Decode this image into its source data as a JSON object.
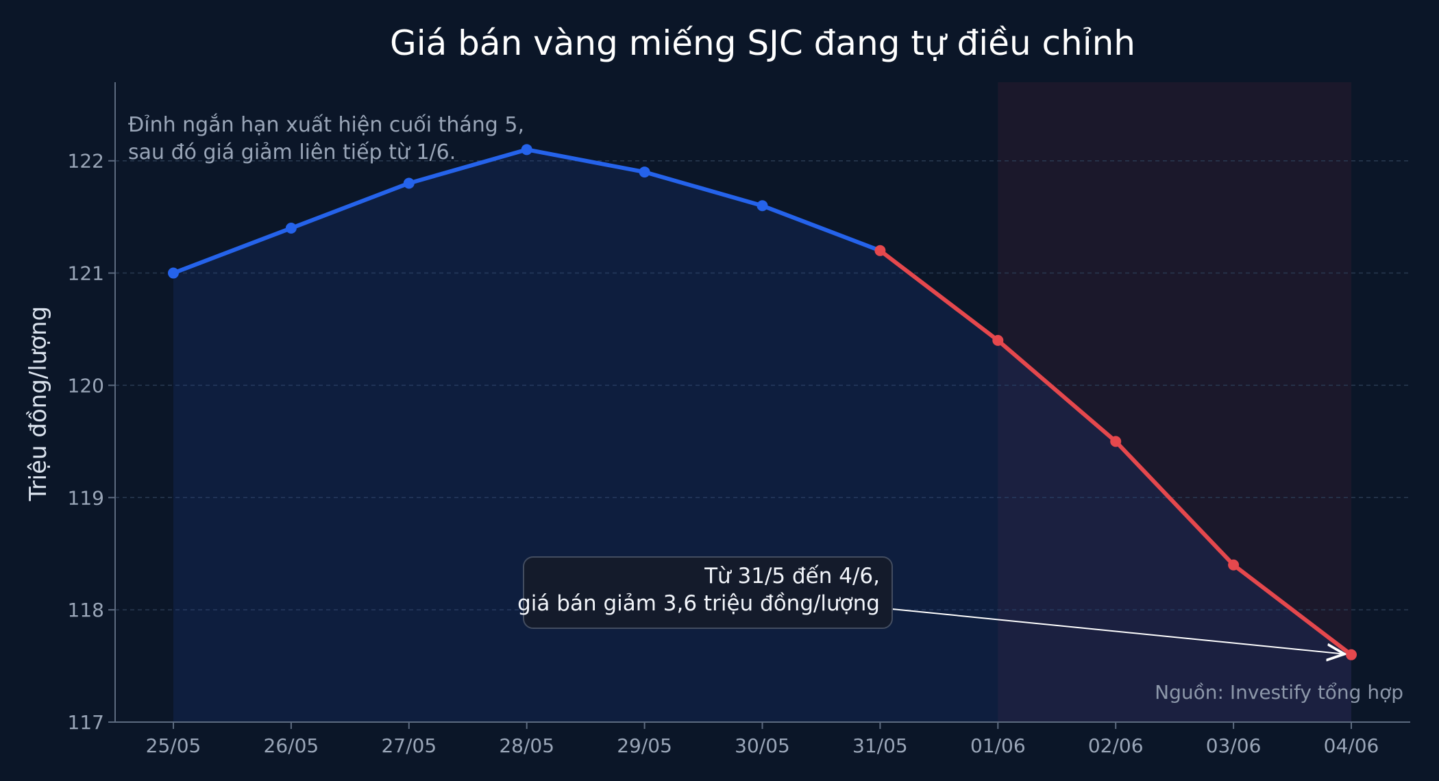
{
  "chart_data": {
    "type": "line",
    "title": "Giá bán vàng miếng SJC đang tự điều chỉnh",
    "xlabel": "",
    "ylabel": "Triệu đồng/lượng",
    "categories": [
      "25/05",
      "26/05",
      "27/05",
      "28/05",
      "29/05",
      "30/05",
      "31/05",
      "01/06",
      "02/06",
      "03/06",
      "04/06"
    ],
    "series": [
      {
        "values": [
          121.0,
          121.4,
          121.8,
          122.1,
          121.9,
          121.6,
          121.2,
          120.4,
          119.5,
          118.4,
          117.6
        ],
        "color_rising": "#2563eb",
        "color_falling": "#e5484d",
        "falling_from_index": 6
      }
    ],
    "ylim": [
      117,
      122.7
    ],
    "yticks": [
      117,
      118,
      119,
      120,
      121,
      122
    ],
    "grid": true,
    "highlight_region": {
      "from": "01/06",
      "to": "04/06"
    },
    "annotations": {
      "top_note": [
        "Đỉnh ngắn hạn xuất hiện cuối tháng 5,",
        "sau đó giá giảm liên tiếp từ 1/6."
      ],
      "callout": [
        "Từ 31/5 đến 4/6,",
        "giá bán giảm 3,6 triệu đồng/lượng"
      ],
      "callout_target": "04/06",
      "source": "Nguồn: Investify tổng hợp"
    }
  }
}
